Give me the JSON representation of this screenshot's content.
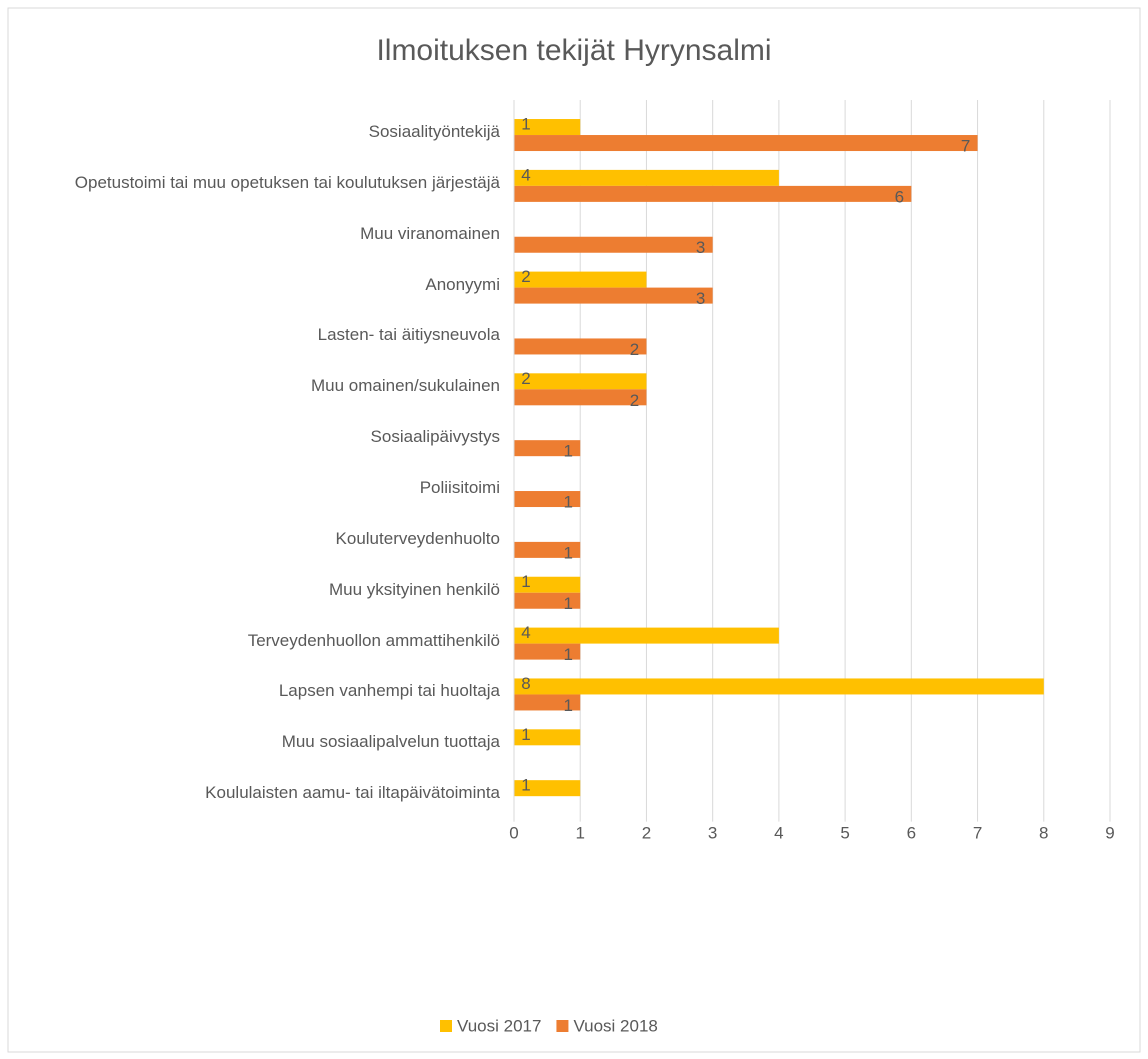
{
  "chart_data": {
    "type": "bar",
    "orientation": "horizontal",
    "title": "Ilmoituksen tekijät Hyrynsalmi",
    "categories": [
      "Sosiaalityöntekijä",
      "Opetustoimi tai muu opetuksen tai koulutuksen järjestäjä",
      "Muu viranomainen",
      "Anonyymi",
      "Lasten- tai äitiysneuvola",
      "Muu omainen/sukulainen",
      "Sosiaalipäivystys",
      "Poliisitoimi",
      "Kouluterveydenhuolto",
      "Muu yksityinen henkilö",
      "Terveydenhuollon ammattihenkilö",
      "Lapsen vanhempi tai huoltaja",
      "Muu sosiaalipalvelun tuottaja",
      "Koululaisten aamu- tai iltapäivätoiminta"
    ],
    "series": [
      {
        "name": "Vuosi 2017",
        "color": "#ffc000",
        "values": [
          1,
          4,
          null,
          2,
          null,
          2,
          null,
          null,
          null,
          1,
          4,
          8,
          1,
          1
        ]
      },
      {
        "name": "Vuosi 2018",
        "color": "#ed7d31",
        "values": [
          7,
          6,
          3,
          3,
          2,
          2,
          1,
          1,
          1,
          1,
          1,
          1,
          null,
          null
        ]
      }
    ],
    "xlim": [
      0,
      9
    ],
    "xticks": [
      0,
      1,
      2,
      3,
      4,
      5,
      6,
      7,
      8,
      9
    ],
    "grid": true,
    "legend": "bottom"
  }
}
